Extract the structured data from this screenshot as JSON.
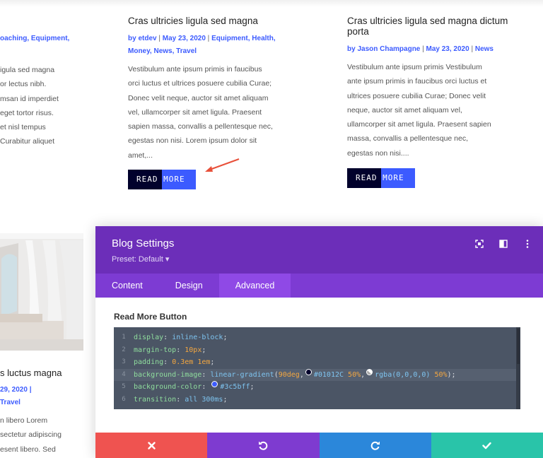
{
  "left_partial": {
    "meta_top": "oaching, Equipment,",
    "excerpt_lines": [
      "igula sed magna",
      "or lectus nibh.",
      "msan id imperdiet",
      "eget tortor risus.",
      "et nisl tempus",
      "Curabitur aliquet"
    ],
    "title_bottom": "s luctus magna",
    "meta_bottom_1": "29, 2020 |",
    "meta_bottom_2": "Travel",
    "excerpt_bottom_lines": [
      "n libero Lorem",
      "sectetur adipiscing",
      "esent libero. Sed"
    ]
  },
  "post_center": {
    "title": "Cras ultricies ligula sed magna",
    "meta_line1": [
      "by etdev",
      "May 23, 2020",
      "Equipment",
      "Health,"
    ],
    "meta_line2": [
      "Money, News, Travel"
    ],
    "excerpt_lines": [
      "Vestibulum ante ipsum primis in faucibus",
      "orci luctus et ultrices posuere cubilia Curae;",
      "Donec velit neque, auctor sit amet aliquam",
      "vel, ullamcorper sit amet ligula. Praesent",
      "sapien massa, convallis a pellentesque nec,",
      "egestas non nisi. Lorem ipsum dolor sit",
      "amet,..."
    ],
    "read_more": "READ MORE"
  },
  "post_right": {
    "title_line1": "Cras ultricies ligula sed magna dictum",
    "title_line2": "porta",
    "meta": [
      "by Jason Champagne",
      "May 23, 2020",
      "News"
    ],
    "excerpt_lines": [
      "Vestibulum ante ipsum primis Vestibulum",
      "ante ipsum primis in faucibus orci luctus et",
      "ultrices posuere cubilia Curae; Donec velit",
      "neque, auctor sit amet aliquam vel,",
      "ullamcorper sit amet ligula. Praesent sapien",
      "massa, convallis a pellentesque nec,",
      "egestas non nisi...."
    ],
    "read_more": "READ MORE"
  },
  "modal": {
    "title": "Blog Settings",
    "preset": "Preset: Default ▾",
    "tabs": [
      "Content",
      "Design",
      "Advanced"
    ],
    "active_tab": "Advanced",
    "section_label": "Read More Button",
    "code_lines": [
      {
        "n": "1",
        "prop": "display",
        "val": "inline-block"
      },
      {
        "n": "2",
        "prop": "margin-top",
        "val": "10px"
      },
      {
        "n": "3",
        "prop": "padding",
        "val": "0.3em 1em"
      },
      {
        "n": "4",
        "prop": "background-image",
        "fn": "linear-gradient",
        "arg1": "90deg",
        "color1": "#01012C",
        "pct1": "50%",
        "color2": "rgba(0,0,0,0)",
        "pct2": "50%"
      },
      {
        "n": "5",
        "prop": "background-color",
        "val": "#3c5bff"
      },
      {
        "n": "6",
        "prop": "transition",
        "val": "all 300ms"
      }
    ],
    "icons": [
      "fullscreen-icon",
      "split-view-icon",
      "more-vertical-icon"
    ],
    "footer": [
      "close-icon",
      "undo-icon",
      "redo-icon",
      "check-icon"
    ]
  },
  "colors": {
    "accent": "#3c5bff",
    "dark": "#01012C",
    "modal_header": "#6c2eb9",
    "tabs_bar": "#7d3bd3",
    "close": "#ef5350",
    "undo": "#7e3bd0",
    "redo": "#2b87da",
    "save": "#29c4a9",
    "arrow": "#e8503a"
  }
}
